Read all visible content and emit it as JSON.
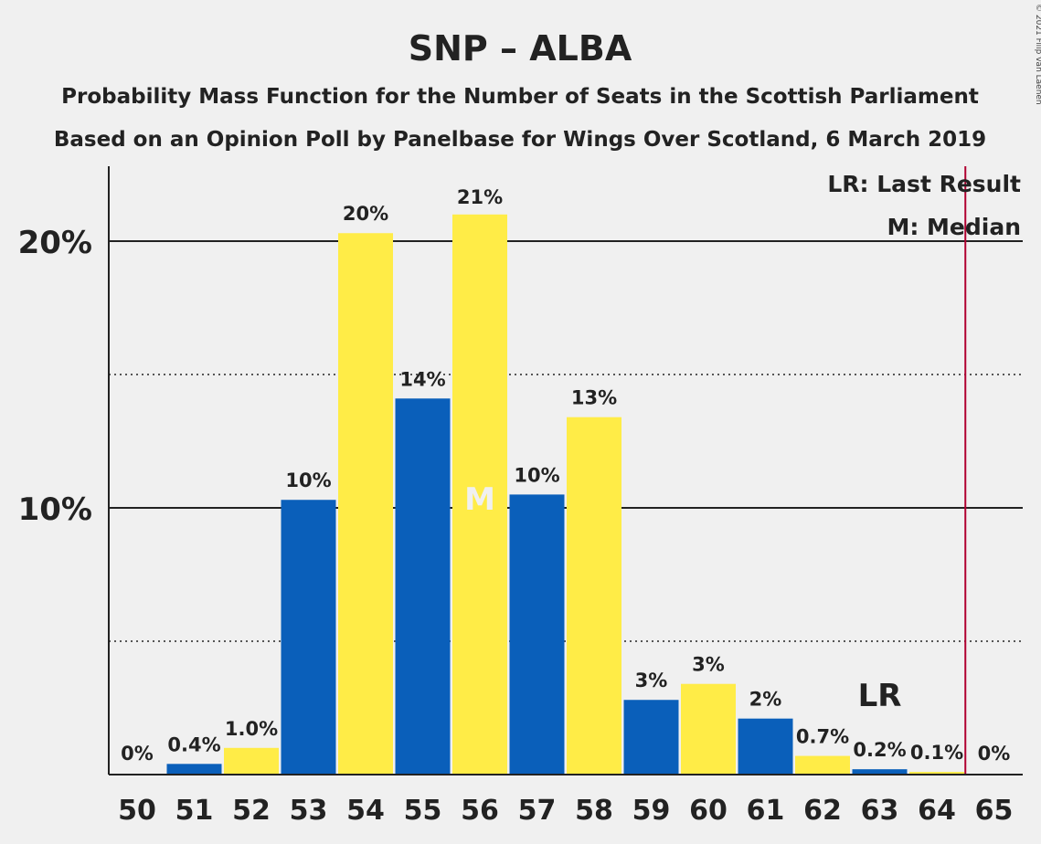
{
  "colors": {
    "background": "#f0f0f0",
    "blue": "#0a5fba",
    "yellow": "#ffec47",
    "last_result_line": "#b00030",
    "axis": "#222222"
  },
  "chart_data": {
    "type": "bar",
    "title": "SNP – ALBA",
    "subtitle_1": "Probability Mass Function for the Number of Seats in the Scottish Parliament",
    "subtitle_2": "Based on an Opinion Poll by Panelbase for Wings Over Scotland, 6 March 2019",
    "copyright": "© 2021 Filip van Laenen",
    "xlabel": "",
    "ylabel": "",
    "ylim": [
      0,
      0.228
    ],
    "grid": "solid at 10% and 20%, dotted at 5% and 15%",
    "y_ticks": [
      {
        "value": 0.1,
        "label": "10%"
      },
      {
        "value": 0.2,
        "label": "20%"
      }
    ],
    "categories": [
      "50",
      "51",
      "52",
      "53",
      "54",
      "55",
      "56",
      "57",
      "58",
      "59",
      "60",
      "61",
      "62",
      "63",
      "64",
      "65"
    ],
    "values": [
      0,
      0.004,
      0.01,
      0.103,
      0.203,
      0.141,
      0.21,
      0.105,
      0.134,
      0.028,
      0.034,
      0.021,
      0.007,
      0.002,
      0.001,
      0
    ],
    "labels": [
      "0%",
      "0.4%",
      "1.0%",
      "10%",
      "20%",
      "14%",
      "21%",
      "10%",
      "13%",
      "3%",
      "3%",
      "2%",
      "0.7%",
      "0.2%",
      "0.1%",
      "0%"
    ],
    "bar_colors": [
      "blue",
      "blue",
      "yellow",
      "blue",
      "yellow",
      "blue",
      "yellow",
      "blue",
      "yellow",
      "blue",
      "yellow",
      "blue",
      "yellow",
      "blue",
      "yellow",
      "blue"
    ],
    "median": {
      "seat": "56",
      "marker": "M"
    },
    "last_result": {
      "seat": "63",
      "marker": "LR"
    },
    "majority_line_after": "64",
    "legend": {
      "placement": "top-right",
      "entries": [
        "LR: Last Result",
        "M: Median"
      ]
    }
  }
}
